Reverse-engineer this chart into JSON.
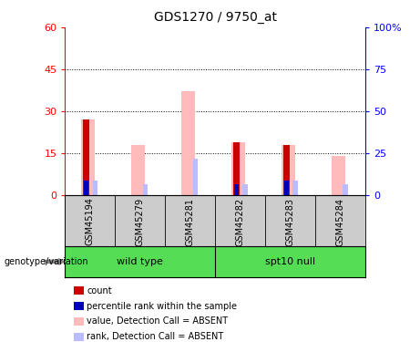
{
  "title": "GDS1270 / 9750_at",
  "samples": [
    "GSM45194",
    "GSM45279",
    "GSM45281",
    "GSM45282",
    "GSM45283",
    "GSM45284"
  ],
  "count_values": [
    27,
    0,
    0,
    19,
    18,
    0
  ],
  "percentile_values": [
    5,
    0,
    0,
    4,
    5,
    0
  ],
  "absent_value_values": [
    27,
    18,
    37,
    19,
    18,
    14
  ],
  "absent_rank_values": [
    5,
    4,
    13,
    4,
    5,
    4
  ],
  "ylim_left": [
    0,
    60
  ],
  "ylim_right": [
    0,
    100
  ],
  "yticks_left": [
    0,
    15,
    30,
    45,
    60
  ],
  "yticks_right": [
    0,
    25,
    50,
    75,
    100
  ],
  "yticklabels_left": [
    "0",
    "15",
    "30",
    "45",
    "60"
  ],
  "yticklabels_right": [
    "0",
    "25",
    "50",
    "75",
    "100%"
  ],
  "color_count": "#cc0000",
  "color_percentile": "#0000bb",
  "color_absent_value": "#ffbbbb",
  "color_absent_rank": "#bbbbff",
  "bg_label": "#cccccc",
  "bg_group": "#55dd55",
  "legend_items": [
    "count",
    "percentile rank within the sample",
    "value, Detection Call = ABSENT",
    "rank, Detection Call = ABSENT"
  ],
  "group1_label": "wild type",
  "group2_label": "spt10 null",
  "genotype_label": "genotype/variation"
}
